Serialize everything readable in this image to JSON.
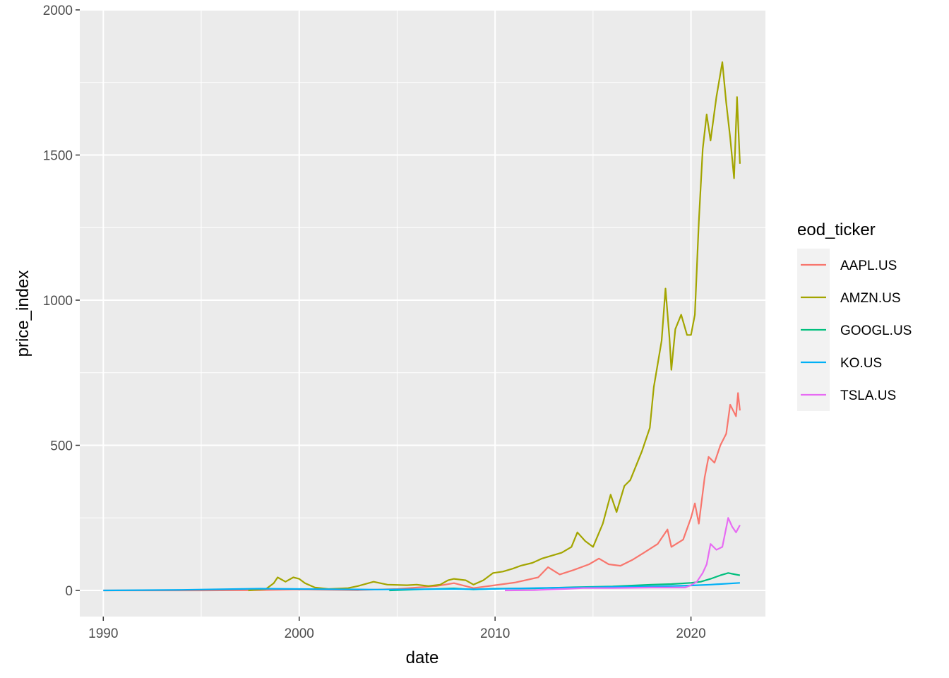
{
  "chart_data": {
    "type": "line",
    "title": "",
    "xlabel": "date",
    "ylabel": "price_index",
    "xlim": [
      1988.8,
      2023.8
    ],
    "ylim": [
      -90,
      2000
    ],
    "x_ticks": [
      1990,
      2000,
      2010,
      2020
    ],
    "x_tick_labels": [
      "1990",
      "2000",
      "2010",
      "2020"
    ],
    "y_ticks": [
      0,
      500,
      1000,
      1500,
      2000
    ],
    "y_tick_labels": [
      "0",
      "500",
      "1000",
      "1500",
      "2000"
    ],
    "grid": true,
    "legend": {
      "title": "eod_ticker",
      "position": "right"
    },
    "series": [
      {
        "name": "AAPL.US",
        "color": "#F8766D",
        "points": [
          [
            1990,
            0
          ],
          [
            1995,
            0
          ],
          [
            1998,
            1
          ],
          [
            2000,
            3
          ],
          [
            2003,
            1
          ],
          [
            2005,
            5
          ],
          [
            2007,
            15
          ],
          [
            2007.9,
            25
          ],
          [
            2008.9,
            8
          ],
          [
            2010,
            18
          ],
          [
            2011,
            27
          ],
          [
            2012.2,
            45
          ],
          [
            2012.7,
            80
          ],
          [
            2013.3,
            55
          ],
          [
            2014,
            70
          ],
          [
            2014.8,
            90
          ],
          [
            2015.3,
            110
          ],
          [
            2015.8,
            90
          ],
          [
            2016.4,
            85
          ],
          [
            2017,
            105
          ],
          [
            2017.6,
            130
          ],
          [
            2018.3,
            160
          ],
          [
            2018.8,
            210
          ],
          [
            2019,
            150
          ],
          [
            2019.6,
            175
          ],
          [
            2020,
            250
          ],
          [
            2020.2,
            300
          ],
          [
            2020.4,
            230
          ],
          [
            2020.7,
            390
          ],
          [
            2020.9,
            460
          ],
          [
            2021.2,
            440
          ],
          [
            2021.5,
            500
          ],
          [
            2021.8,
            540
          ],
          [
            2022,
            640
          ],
          [
            2022.3,
            600
          ],
          [
            2022.4,
            680
          ],
          [
            2022.5,
            620
          ]
        ]
      },
      {
        "name": "AMZN.US",
        "color": "#A3A500",
        "points": [
          [
            1997.4,
            0
          ],
          [
            1998.3,
            5
          ],
          [
            1998.7,
            25
          ],
          [
            1998.9,
            45
          ],
          [
            1999.3,
            30
          ],
          [
            1999.7,
            45
          ],
          [
            2000,
            40
          ],
          [
            2000.3,
            25
          ],
          [
            2000.8,
            10
          ],
          [
            2001.5,
            5
          ],
          [
            2002.5,
            8
          ],
          [
            2003,
            15
          ],
          [
            2003.8,
            30
          ],
          [
            2004.5,
            20
          ],
          [
            2005.5,
            18
          ],
          [
            2006,
            20
          ],
          [
            2006.6,
            15
          ],
          [
            2007.2,
            20
          ],
          [
            2007.6,
            35
          ],
          [
            2007.9,
            40
          ],
          [
            2008.5,
            35
          ],
          [
            2008.9,
            20
          ],
          [
            2009.4,
            35
          ],
          [
            2009.9,
            60
          ],
          [
            2010.4,
            65
          ],
          [
            2010.9,
            75
          ],
          [
            2011.3,
            85
          ],
          [
            2011.9,
            95
          ],
          [
            2012.4,
            110
          ],
          [
            2012.9,
            120
          ],
          [
            2013.4,
            130
          ],
          [
            2013.9,
            150
          ],
          [
            2014.2,
            200
          ],
          [
            2014.6,
            170
          ],
          [
            2015,
            150
          ],
          [
            2015.5,
            230
          ],
          [
            2015.9,
            330
          ],
          [
            2016.2,
            270
          ],
          [
            2016.6,
            360
          ],
          [
            2016.9,
            380
          ],
          [
            2017.5,
            480
          ],
          [
            2017.9,
            560
          ],
          [
            2018.1,
            700
          ],
          [
            2018.5,
            860
          ],
          [
            2018.7,
            1040
          ],
          [
            2018.9,
            870
          ],
          [
            2019,
            760
          ],
          [
            2019.2,
            900
          ],
          [
            2019.5,
            950
          ],
          [
            2019.8,
            880
          ],
          [
            2020,
            880
          ],
          [
            2020.2,
            950
          ],
          [
            2020.4,
            1270
          ],
          [
            2020.6,
            1520
          ],
          [
            2020.8,
            1640
          ],
          [
            2021,
            1550
          ],
          [
            2021.3,
            1700
          ],
          [
            2021.6,
            1820
          ],
          [
            2021.8,
            1680
          ],
          [
            2022,
            1560
          ],
          [
            2022.2,
            1420
          ],
          [
            2022.35,
            1700
          ],
          [
            2022.5,
            1470
          ]
        ]
      },
      {
        "name": "GOOGL.US",
        "color": "#00BF7D",
        "points": [
          [
            2004.6,
            0
          ],
          [
            2006,
            3
          ],
          [
            2007.9,
            7
          ],
          [
            2008.9,
            3
          ],
          [
            2010,
            6
          ],
          [
            2012,
            7
          ],
          [
            2014,
            11
          ],
          [
            2016,
            14
          ],
          [
            2018,
            20
          ],
          [
            2019,
            22
          ],
          [
            2020,
            26
          ],
          [
            2020.5,
            30
          ],
          [
            2021,
            40
          ],
          [
            2021.5,
            52
          ],
          [
            2021.9,
            60
          ],
          [
            2022.2,
            56
          ],
          [
            2022.5,
            52
          ]
        ]
      },
      {
        "name": "KO.US",
        "color": "#00B0F6",
        "points": [
          [
            1990,
            0
          ],
          [
            1994,
            2
          ],
          [
            1998,
            6
          ],
          [
            2000,
            5
          ],
          [
            2004,
            3
          ],
          [
            2006,
            4
          ],
          [
            2008,
            5
          ],
          [
            2009,
            4
          ],
          [
            2012,
            8
          ],
          [
            2016,
            12
          ],
          [
            2019,
            15
          ],
          [
            2020,
            17
          ],
          [
            2021,
            20
          ],
          [
            2022.5,
            26
          ]
        ]
      },
      {
        "name": "TSLA.US",
        "color": "#E76BF3",
        "points": [
          [
            2010.5,
            0
          ],
          [
            2012,
            1
          ],
          [
            2013.5,
            5
          ],
          [
            2014.5,
            8
          ],
          [
            2016,
            8
          ],
          [
            2018,
            10
          ],
          [
            2019.7,
            10
          ],
          [
            2020,
            18
          ],
          [
            2020.3,
            30
          ],
          [
            2020.6,
            60
          ],
          [
            2020.8,
            90
          ],
          [
            2021,
            160
          ],
          [
            2021.3,
            140
          ],
          [
            2021.6,
            150
          ],
          [
            2021.9,
            250
          ],
          [
            2022.1,
            220
          ],
          [
            2022.3,
            200
          ],
          [
            2022.5,
            225
          ]
        ]
      }
    ]
  }
}
